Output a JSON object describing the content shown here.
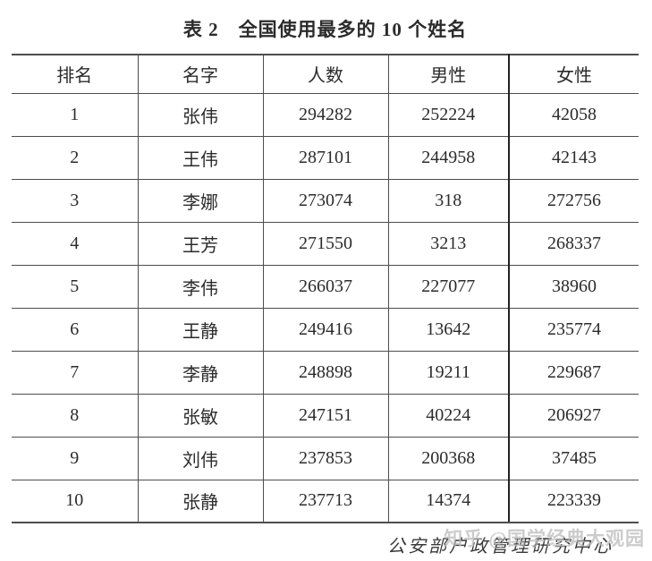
{
  "title": "表 2　全国使用最多的 10 个姓名",
  "table": {
    "headers": [
      "排名",
      "名字",
      "人数",
      "男性",
      "女性"
    ],
    "rows": [
      [
        "1",
        "张伟",
        "294282",
        "252224",
        "42058"
      ],
      [
        "2",
        "王伟",
        "287101",
        "244958",
        "42143"
      ],
      [
        "3",
        "李娜",
        "273074",
        "318",
        "272756"
      ],
      [
        "4",
        "王芳",
        "271550",
        "3213",
        "268337"
      ],
      [
        "5",
        "李伟",
        "266037",
        "227077",
        "38960"
      ],
      [
        "6",
        "王静",
        "249416",
        "13642",
        "235774"
      ],
      [
        "7",
        "李静",
        "248898",
        "19211",
        "229687"
      ],
      [
        "8",
        "张敏",
        "247151",
        "40224",
        "206927"
      ],
      [
        "9",
        "刘伟",
        "237853",
        "200368",
        "37485"
      ],
      [
        "10",
        "张静",
        "237713",
        "14374",
        "223339"
      ]
    ]
  },
  "footer": {
    "source": "公安部户政管理研究中心",
    "watermark": "知乎 @国学经典大观园"
  },
  "colors": {
    "text": "#2b2b2b",
    "border": "#4d4d4d",
    "divider": "#222222",
    "watermark": "#b9b9b9",
    "background": "#ffffff"
  }
}
